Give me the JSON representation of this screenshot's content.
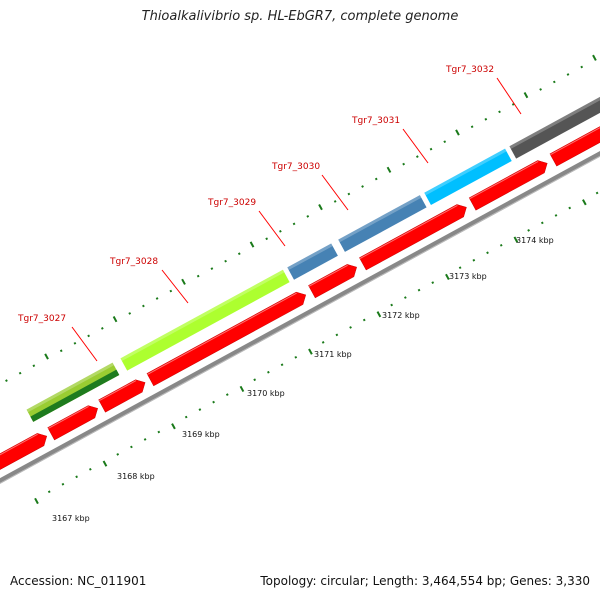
{
  "title": "Thioalkalivibrio sp. HL-EbGR7, complete genome",
  "footer": {
    "accession": "Accession: NC_011901",
    "stats": "Topology: circular; Length: 3,464,554 bp; Genes: 3,330"
  },
  "genes": [
    {
      "label": "Tgr7_3027",
      "color": "#9acd32"
    },
    {
      "label": "Tgr7_3028",
      "color": "#adff2f"
    },
    {
      "label": "Tgr7_3029",
      "color": "#4682b4"
    },
    {
      "label": "Tgr7_3030",
      "color": "#4682b4"
    },
    {
      "label": "Tgr7_3031",
      "color": "#00bfff"
    },
    {
      "label": "Tgr7_3032",
      "color": "#555555"
    }
  ],
  "kbp_labels": [
    "3167 kbp",
    "3168 kbp",
    "3169 kbp",
    "3170 kbp",
    "3171 kbp",
    "3172 kbp",
    "3173 kbp",
    "3174 kbp"
  ],
  "colors": {
    "cds": "#ff0000",
    "backbone": "#888888",
    "ticks": "#1a7a1a",
    "pink_gene": "#ff1493",
    "dark_green_gene": "#1e7b1e"
  }
}
